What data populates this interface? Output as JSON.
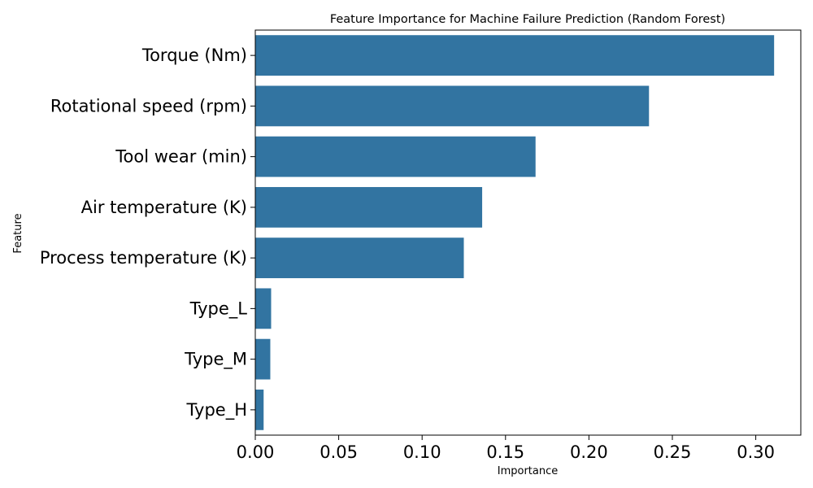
{
  "chart_data": {
    "type": "bar",
    "orientation": "horizontal",
    "title": "Feature Importance for Machine Failure Prediction (Random Forest)",
    "xlabel": "Importance",
    "ylabel": "Feature",
    "categories": [
      "Torque (Nm)",
      "Rotational speed (rpm)",
      "Tool wear (min)",
      "Air temperature (K)",
      "Process temperature (K)",
      "Type_L",
      "Type_M",
      "Type_H"
    ],
    "values": [
      0.311,
      0.236,
      0.168,
      0.136,
      0.125,
      0.0095,
      0.009,
      0.005
    ],
    "xlim": [
      0,
      0.327
    ],
    "xticks": [
      0.0,
      0.05,
      0.1,
      0.15,
      0.2,
      0.25,
      0.3
    ],
    "xtick_labels": [
      "0.00",
      "0.05",
      "0.10",
      "0.15",
      "0.20",
      "0.25",
      "0.30"
    ],
    "bar_color": "#3274a1",
    "grid": false,
    "legend": "none"
  }
}
